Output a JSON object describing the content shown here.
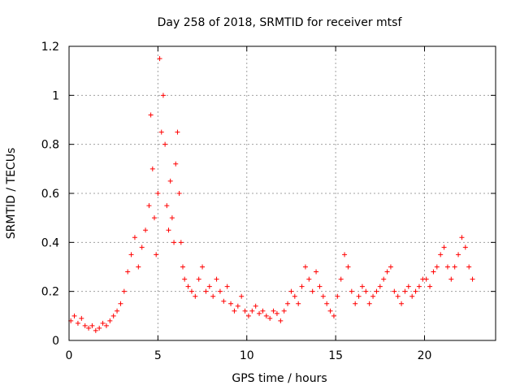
{
  "chart_data": {
    "type": "scatter",
    "title": "Day 258 of 2018, SRMTID for receiver mtsf",
    "xlabel": "GPS time / hours",
    "ylabel": "SRMTID / TECUs",
    "xlim": [
      0,
      24
    ],
    "ylim": [
      0,
      1.2
    ],
    "xticks": [
      0,
      5,
      10,
      15,
      20
    ],
    "xtick_labels": [
      "0",
      "5",
      "10",
      "15",
      "20"
    ],
    "yticks": [
      0,
      0.2,
      0.4,
      0.6,
      0.8,
      1.0,
      1.2
    ],
    "ytick_labels": [
      "0",
      "0.2",
      "0.4",
      "0.6",
      "0.8",
      "1",
      "1.2"
    ],
    "grid": true,
    "marker": "+",
    "color": "#ff0000",
    "series": [
      {
        "name": "SRMTID",
        "x": [
          0.1,
          0.3,
          0.5,
          0.7,
          0.9,
          1.1,
          1.3,
          1.5,
          1.7,
          1.9,
          2.1,
          2.3,
          2.5,
          2.7,
          2.9,
          3.1,
          3.3,
          3.5,
          3.7,
          3.9,
          4.1,
          4.3,
          4.5,
          4.6,
          4.7,
          4.8,
          4.9,
          5.0,
          5.1,
          5.2,
          5.3,
          5.4,
          5.5,
          5.6,
          5.7,
          5.8,
          5.9,
          6.0,
          6.1,
          6.2,
          6.3,
          6.4,
          6.5,
          6.7,
          6.9,
          7.1,
          7.3,
          7.5,
          7.7,
          7.9,
          8.1,
          8.3,
          8.5,
          8.7,
          8.9,
          9.1,
          9.3,
          9.5,
          9.7,
          9.9,
          10.1,
          10.3,
          10.5,
          10.7,
          10.9,
          11.1,
          11.3,
          11.5,
          11.7,
          11.9,
          12.1,
          12.3,
          12.5,
          12.7,
          12.9,
          13.1,
          13.3,
          13.5,
          13.7,
          13.9,
          14.1,
          14.3,
          14.5,
          14.7,
          14.9,
          15.1,
          15.3,
          15.5,
          15.7,
          15.9,
          16.1,
          16.3,
          16.5,
          16.7,
          16.9,
          17.1,
          17.3,
          17.5,
          17.7,
          17.9,
          18.1,
          18.3,
          18.5,
          18.7,
          18.9,
          19.1,
          19.3,
          19.5,
          19.7,
          19.9,
          20.1,
          20.3,
          20.5,
          20.7,
          20.9,
          21.1,
          21.3,
          21.5,
          21.7,
          21.9,
          22.1,
          22.3,
          22.5,
          22.7
        ],
        "y": [
          0.08,
          0.1,
          0.07,
          0.09,
          0.06,
          0.05,
          0.06,
          0.04,
          0.05,
          0.07,
          0.06,
          0.08,
          0.1,
          0.12,
          0.15,
          0.2,
          0.28,
          0.35,
          0.42,
          0.3,
          0.38,
          0.45,
          0.55,
          0.92,
          0.7,
          0.5,
          0.35,
          0.6,
          1.15,
          0.85,
          1.0,
          0.8,
          0.55,
          0.45,
          0.65,
          0.5,
          0.4,
          0.72,
          0.85,
          0.6,
          0.4,
          0.3,
          0.25,
          0.22,
          0.2,
          0.18,
          0.25,
          0.3,
          0.2,
          0.22,
          0.18,
          0.25,
          0.2,
          0.16,
          0.22,
          0.15,
          0.12,
          0.14,
          0.18,
          0.12,
          0.1,
          0.12,
          0.14,
          0.11,
          0.12,
          0.1,
          0.09,
          0.12,
          0.11,
          0.08,
          0.12,
          0.15,
          0.2,
          0.18,
          0.15,
          0.22,
          0.3,
          0.25,
          0.2,
          0.28,
          0.22,
          0.18,
          0.15,
          0.12,
          0.1,
          0.18,
          0.25,
          0.35,
          0.3,
          0.2,
          0.15,
          0.18,
          0.22,
          0.2,
          0.15,
          0.18,
          0.2,
          0.22,
          0.25,
          0.28,
          0.3,
          0.2,
          0.18,
          0.15,
          0.2,
          0.22,
          0.18,
          0.2,
          0.22,
          0.25,
          0.25,
          0.22,
          0.28,
          0.3,
          0.35,
          0.38,
          0.3,
          0.25,
          0.3,
          0.35,
          0.42,
          0.38,
          0.3,
          0.25
        ]
      }
    ]
  }
}
